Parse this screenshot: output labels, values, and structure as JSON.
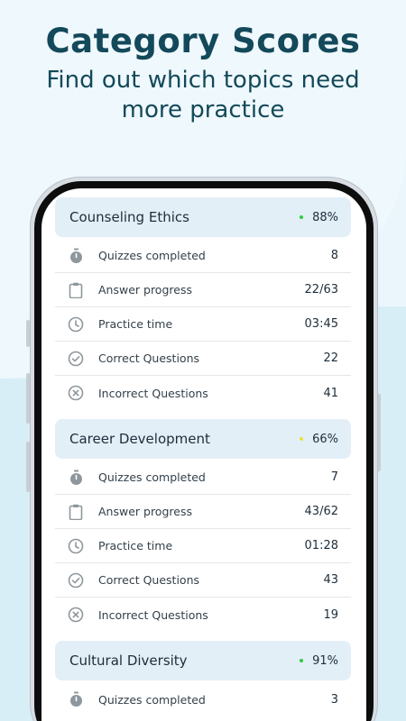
{
  "hero": {
    "title": "Category Scores",
    "subtitle_line1": "Find out which topics need",
    "subtitle_line2": "more practice"
  },
  "row_labels": {
    "quizzes": "Quizzes completed",
    "progress": "Answer progress",
    "time": "Practice time",
    "correct": "Correct Questions",
    "incorrect": "Incorrect Questions"
  },
  "categories": [
    {
      "title": "Counseling Ethics",
      "percent": "88%",
      "dot_color": "#2ecc40",
      "quizzes": "8",
      "progress": "22/63",
      "time": "03:45",
      "correct": "22",
      "incorrect": "41"
    },
    {
      "title": "Career Development",
      "percent": "66%",
      "dot_color": "#e8e43a",
      "quizzes": "7",
      "progress": "43/62",
      "time": "01:28",
      "correct": "43",
      "incorrect": "19"
    },
    {
      "title": "Cultural Diversity",
      "percent": "91%",
      "dot_color": "#2ecc40",
      "quizzes": "3"
    }
  ],
  "icons": {
    "quizzes": "stopwatch-icon",
    "progress": "clipboard-icon",
    "time": "clock-icon",
    "correct": "check-circle-icon",
    "incorrect": "x-circle-icon"
  },
  "colors": {
    "title": "#13495a",
    "card_header": "#e3eff7",
    "icon": "#8e979d"
  }
}
